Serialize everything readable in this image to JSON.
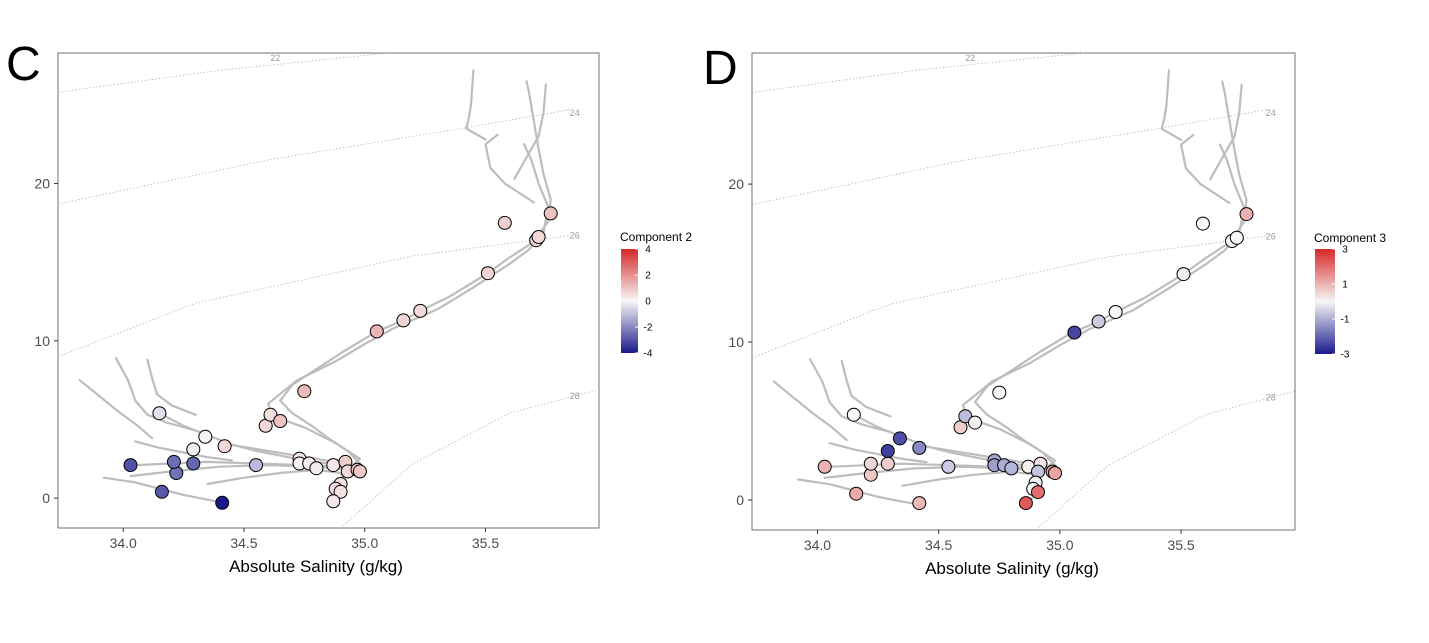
{
  "chart_data": [
    {
      "panel_label": "C",
      "type": "scatter",
      "xlabel": "Absolute Salinity (g/kg)",
      "ylabel": "",
      "xlim": [
        33.73,
        35.97
      ],
      "ylim": [
        -1.9,
        28.3
      ],
      "x_ticks": [
        34.0,
        34.5,
        35.0,
        35.5
      ],
      "x_tick_labels": [
        "34.0",
        "34.5",
        "35.0",
        "35.5"
      ],
      "y_ticks": [
        0,
        10,
        20
      ],
      "y_tick_labels": [
        "0",
        "10",
        "20"
      ],
      "grid": false,
      "isopycnal_labels": [
        "22",
        "24",
        "26",
        "28"
      ],
      "legend": {
        "title": "Component 2",
        "position": "right",
        "scale": "diverging blue-white-red",
        "min": -4,
        "max": 4,
        "ticks": [
          4,
          2,
          0,
          -2,
          -4
        ],
        "tick_labels": [
          "4",
          "2",
          "0",
          "-2",
          "-4"
        ]
      },
      "points": [
        {
          "x": 34.03,
          "y": 2.1,
          "value": -3.0
        },
        {
          "x": 34.16,
          "y": 0.4,
          "value": -2.9
        },
        {
          "x": 34.22,
          "y": 1.6,
          "value": -2.4
        },
        {
          "x": 34.21,
          "y": 2.3,
          "value": -2.5
        },
        {
          "x": 34.29,
          "y": 2.2,
          "value": -2.6
        },
        {
          "x": 34.15,
          "y": 5.4,
          "value": -0.4
        },
        {
          "x": 34.29,
          "y": 3.1,
          "value": -0.2
        },
        {
          "x": 34.34,
          "y": 3.9,
          "value": 0.1
        },
        {
          "x": 34.42,
          "y": 3.3,
          "value": 0.6
        },
        {
          "x": 34.41,
          "y": -0.3,
          "value": -4.0
        },
        {
          "x": 34.55,
          "y": 2.1,
          "value": -1.1
        },
        {
          "x": 34.59,
          "y": 4.6,
          "value": 0.6
        },
        {
          "x": 34.61,
          "y": 5.3,
          "value": 0.5
        },
        {
          "x": 34.65,
          "y": 4.9,
          "value": 1.0
        },
        {
          "x": 34.75,
          "y": 6.8,
          "value": 1.2
        },
        {
          "x": 34.73,
          "y": 2.5,
          "value": 0.3
        },
        {
          "x": 34.73,
          "y": 2.2,
          "value": 0.1
        },
        {
          "x": 34.77,
          "y": 2.2,
          "value": 0.2
        },
        {
          "x": 34.8,
          "y": 1.9,
          "value": 0.2
        },
        {
          "x": 34.87,
          "y": 2.1,
          "value": 0.3
        },
        {
          "x": 34.92,
          "y": 2.3,
          "value": 0.8
        },
        {
          "x": 34.93,
          "y": 1.7,
          "value": 0.6
        },
        {
          "x": 34.97,
          "y": 1.8,
          "value": 1.0
        },
        {
          "x": 34.98,
          "y": 1.7,
          "value": 0.9
        },
        {
          "x": 34.9,
          "y": 0.9,
          "value": 0.4
        },
        {
          "x": 34.88,
          "y": 0.6,
          "value": 0.5
        },
        {
          "x": 34.9,
          "y": 0.4,
          "value": 0.4
        },
        {
          "x": 34.87,
          "y": -0.2,
          "value": 0.3
        },
        {
          "x": 35.05,
          "y": 10.6,
          "value": 1.3
        },
        {
          "x": 35.16,
          "y": 11.3,
          "value": 0.7
        },
        {
          "x": 35.23,
          "y": 11.9,
          "value": 0.6
        },
        {
          "x": 35.51,
          "y": 14.3,
          "value": 0.7
        },
        {
          "x": 35.58,
          "y": 17.5,
          "value": 0.8
        },
        {
          "x": 35.71,
          "y": 16.4,
          "value": 0.5
        },
        {
          "x": 35.72,
          "y": 16.6,
          "value": 0.6
        },
        {
          "x": 35.77,
          "y": 18.1,
          "value": 1.0
        }
      ]
    },
    {
      "panel_label": "D",
      "type": "scatter",
      "xlabel": "Absolute Salinity (g/kg)",
      "ylabel": "",
      "xlim": [
        33.73,
        35.97
      ],
      "ylim": [
        -1.9,
        28.3
      ],
      "x_ticks": [
        34.0,
        34.5,
        35.0,
        35.5
      ],
      "x_tick_labels": [
        "34.0",
        "34.5",
        "35.0",
        "35.5"
      ],
      "y_ticks": [
        0,
        10,
        20
      ],
      "y_tick_labels": [
        "0",
        "10",
        "20"
      ],
      "grid": false,
      "isopycnal_labels": [
        "22",
        "24",
        "26",
        "28"
      ],
      "legend": {
        "title": "Component 3",
        "position": "right",
        "scale": "diverging blue-white-red",
        "min": -3,
        "max": 3,
        "ticks": [
          3,
          1,
          -1,
          -3
        ],
        "tick_labels": [
          "3",
          "1",
          "-1",
          "-3"
        ]
      },
      "points": [
        {
          "x": 34.03,
          "y": 2.1,
          "value": 1.0
        },
        {
          "x": 34.16,
          "y": 0.4,
          "value": 1.1
        },
        {
          "x": 34.22,
          "y": 1.6,
          "value": 0.7
        },
        {
          "x": 34.22,
          "y": 2.3,
          "value": 0.5
        },
        {
          "x": 34.29,
          "y": 2.3,
          "value": 0.6
        },
        {
          "x": 34.15,
          "y": 5.4,
          "value": 0.0
        },
        {
          "x": 34.29,
          "y": 3.1,
          "value": -2.5
        },
        {
          "x": 34.34,
          "y": 3.9,
          "value": -2.3
        },
        {
          "x": 34.42,
          "y": 3.3,
          "value": -1.5
        },
        {
          "x": 34.42,
          "y": -0.2,
          "value": 0.9
        },
        {
          "x": 34.54,
          "y": 2.1,
          "value": -0.6
        },
        {
          "x": 34.59,
          "y": 4.6,
          "value": 0.6
        },
        {
          "x": 34.61,
          "y": 5.3,
          "value": -0.8
        },
        {
          "x": 34.65,
          "y": 4.9,
          "value": -0.1
        },
        {
          "x": 34.75,
          "y": 6.8,
          "value": 0.0
        },
        {
          "x": 34.73,
          "y": 2.5,
          "value": -1.1
        },
        {
          "x": 34.73,
          "y": 2.2,
          "value": -1.2
        },
        {
          "x": 34.77,
          "y": 2.2,
          "value": -1.0
        },
        {
          "x": 34.8,
          "y": 2.0,
          "value": -0.9
        },
        {
          "x": 34.87,
          "y": 2.1,
          "value": 0.1
        },
        {
          "x": 34.92,
          "y": 2.3,
          "value": 0.3
        },
        {
          "x": 34.91,
          "y": 1.8,
          "value": -0.7
        },
        {
          "x": 34.97,
          "y": 1.8,
          "value": 1.3
        },
        {
          "x": 34.98,
          "y": 1.7,
          "value": 1.2
        },
        {
          "x": 34.9,
          "y": 1.1,
          "value": -0.1
        },
        {
          "x": 34.89,
          "y": 0.7,
          "value": 0.0
        },
        {
          "x": 34.91,
          "y": 0.5,
          "value": 2.0
        },
        {
          "x": 34.86,
          "y": -0.2,
          "value": 2.3
        },
        {
          "x": 35.06,
          "y": 10.6,
          "value": -2.4
        },
        {
          "x": 35.16,
          "y": 11.3,
          "value": -0.6
        },
        {
          "x": 35.23,
          "y": 11.9,
          "value": 0.0
        },
        {
          "x": 35.51,
          "y": 14.3,
          "value": -0.1
        },
        {
          "x": 35.59,
          "y": 17.5,
          "value": 0.0
        },
        {
          "x": 35.71,
          "y": 16.4,
          "value": 0.0
        },
        {
          "x": 35.73,
          "y": 16.6,
          "value": 0.0
        },
        {
          "x": 35.77,
          "y": 18.1,
          "value": 1.0
        }
      ]
    }
  ]
}
